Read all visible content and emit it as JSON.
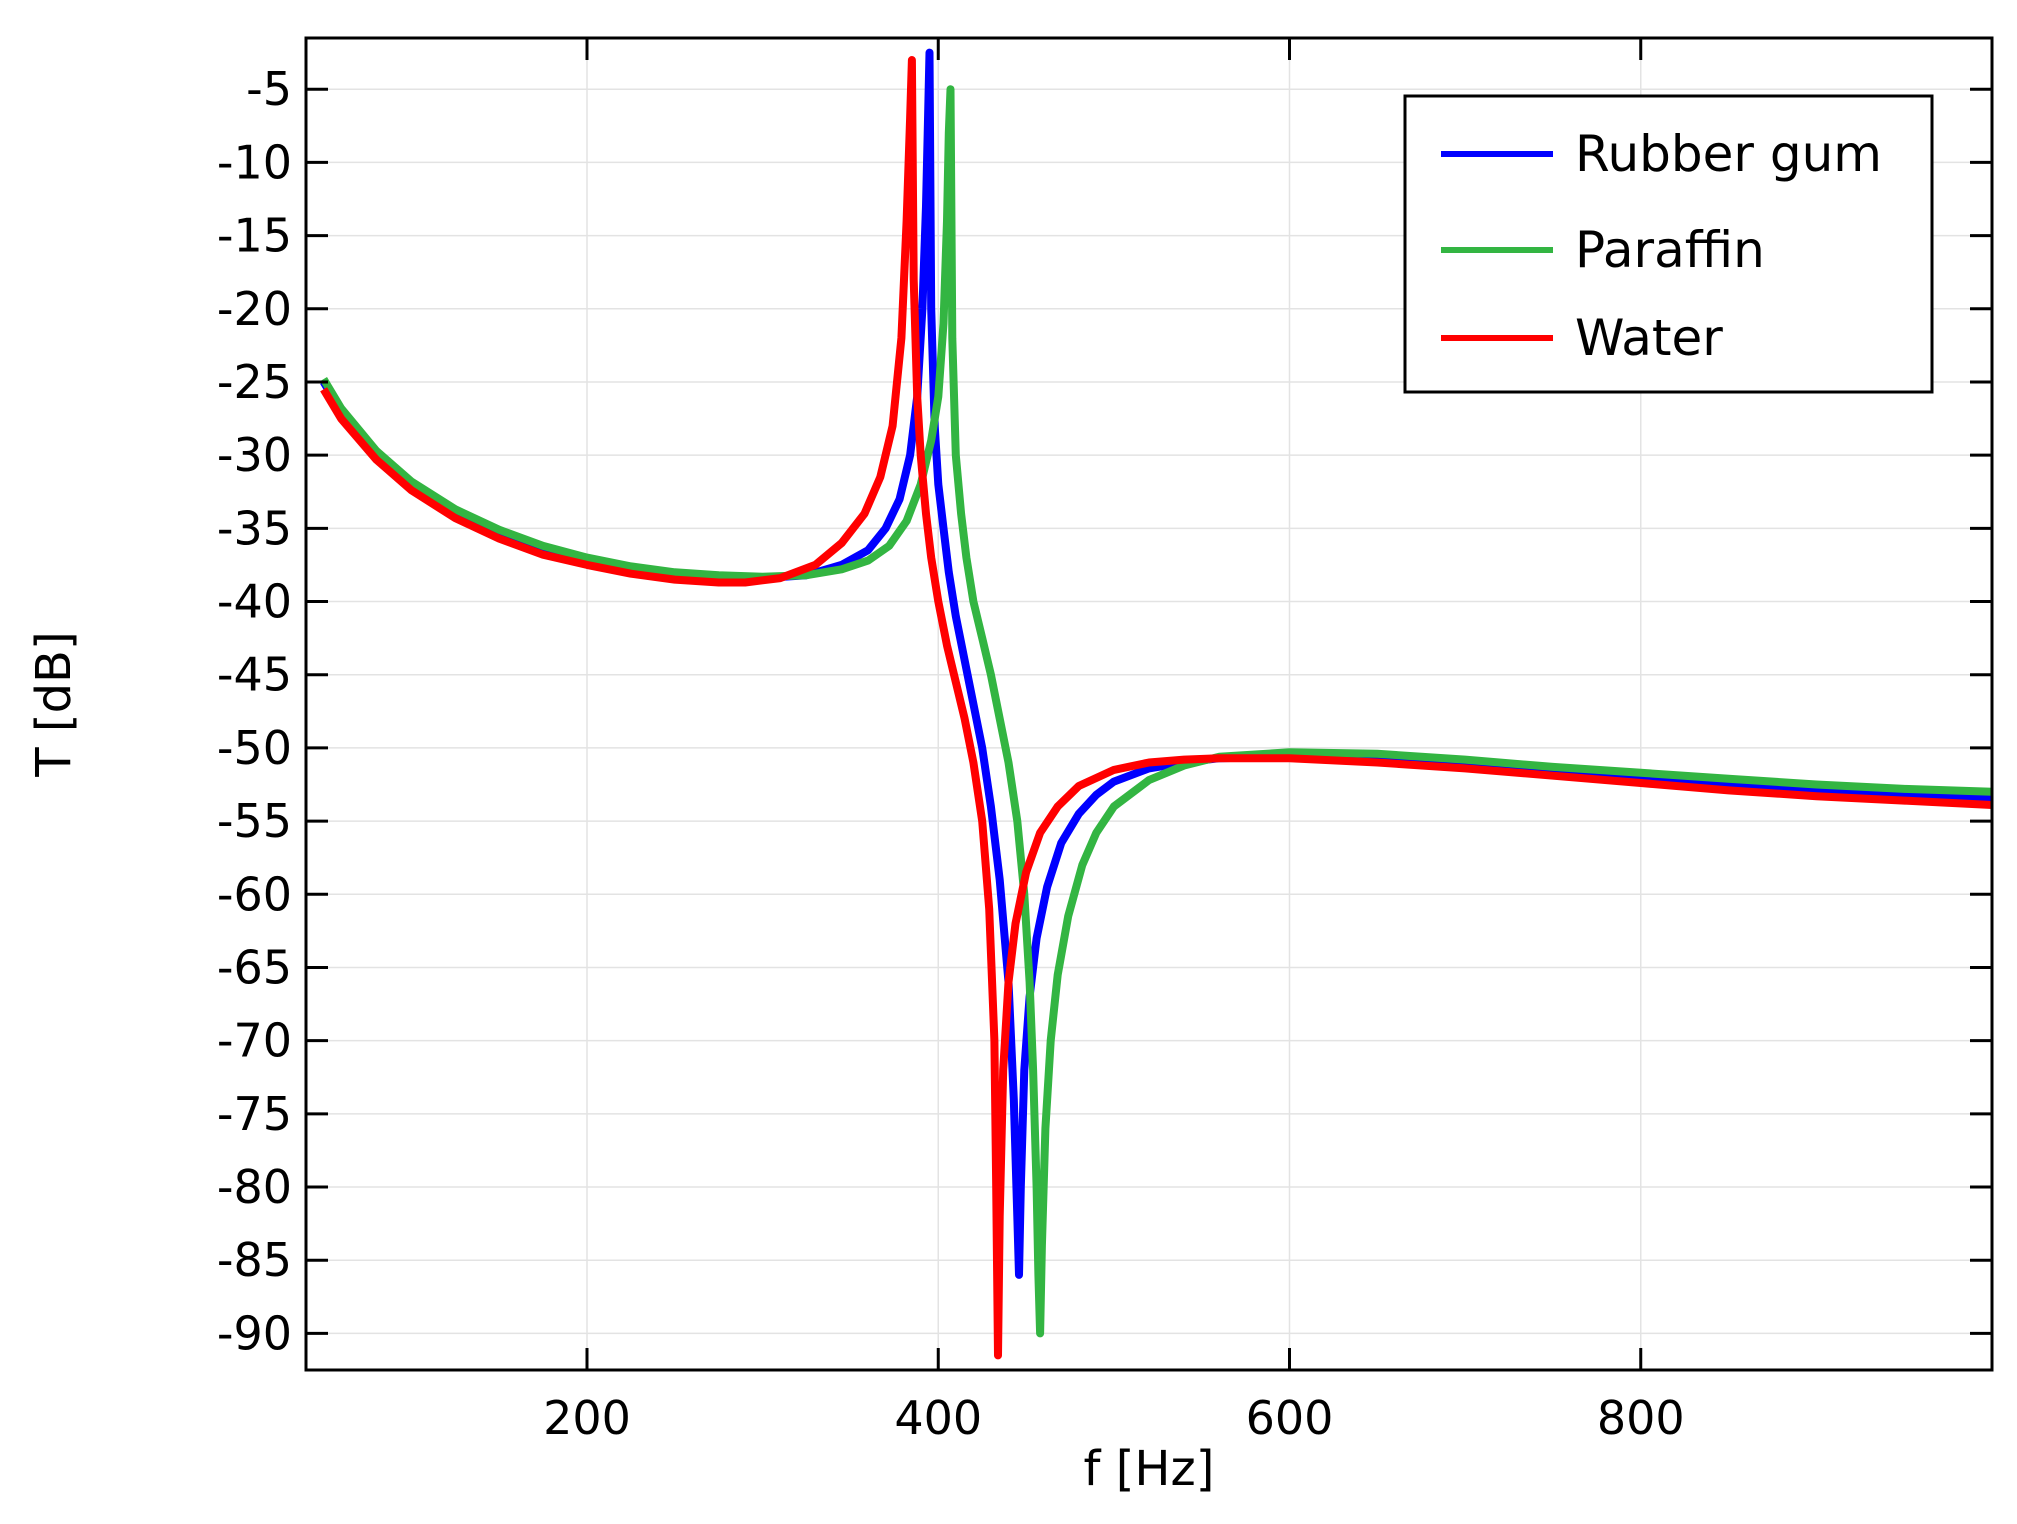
{
  "chart_data": {
    "type": "line",
    "title": "",
    "xlabel": "f [Hz]",
    "ylabel": "T [dB]",
    "xlim": [
      40,
      1000
    ],
    "ylim": [
      -92.5,
      -1.5
    ],
    "xticks": [
      200,
      400,
      600,
      800
    ],
    "xtick_labels": [
      "200",
      "400",
      "600",
      "800"
    ],
    "yticks": [
      -5,
      -10,
      -15,
      -20,
      -25,
      -30,
      -35,
      -40,
      -45,
      -50,
      -55,
      -60,
      -65,
      -70,
      -75,
      -80,
      -85,
      -90
    ],
    "ytick_labels": [
      "-5",
      "-10",
      "-15",
      "-20",
      "-25",
      "-30",
      "-35",
      "-40",
      "-45",
      "-50",
      "-55",
      "-60",
      "-65",
      "-70",
      "-75",
      "-80",
      "-85",
      "-90"
    ],
    "grid": true,
    "legend_position": "top-right",
    "series": [
      {
        "name": "Rubber gum",
        "color": "#0000ff",
        "points": [
          [
            50,
            -25.0
          ],
          [
            60,
            -27.0
          ],
          [
            80,
            -29.9
          ],
          [
            100,
            -32.0
          ],
          [
            125,
            -33.9
          ],
          [
            150,
            -35.3
          ],
          [
            175,
            -36.4
          ],
          [
            200,
            -37.2
          ],
          [
            225,
            -37.8
          ],
          [
            250,
            -38.2
          ],
          [
            275,
            -38.4
          ],
          [
            300,
            -38.4
          ],
          [
            325,
            -38.2
          ],
          [
            345,
            -37.5
          ],
          [
            360,
            -36.5
          ],
          [
            370,
            -35.0
          ],
          [
            378,
            -33.0
          ],
          [
            384,
            -30.0
          ],
          [
            388,
            -26.0
          ],
          [
            391,
            -20.0
          ],
          [
            393,
            -13.0
          ],
          [
            394,
            -8.0
          ],
          [
            395,
            -2.5
          ],
          [
            396,
            -20.0
          ],
          [
            398,
            -28.0
          ],
          [
            400,
            -32.0
          ],
          [
            403,
            -35.0
          ],
          [
            406,
            -38.0
          ],
          [
            410,
            -41.0
          ],
          [
            415,
            -44.0
          ],
          [
            420,
            -47.0
          ],
          [
            425,
            -50.0
          ],
          [
            430,
            -54.0
          ],
          [
            435,
            -59.0
          ],
          [
            440,
            -66.0
          ],
          [
            443,
            -74.0
          ],
          [
            445,
            -82.0
          ],
          [
            446,
            -86.0
          ],
          [
            447,
            -80.0
          ],
          [
            449,
            -72.0
          ],
          [
            452,
            -67.0
          ],
          [
            456,
            -63.0
          ],
          [
            462,
            -59.5
          ],
          [
            470,
            -56.5
          ],
          [
            480,
            -54.5
          ],
          [
            490,
            -53.2
          ],
          [
            500,
            -52.3
          ],
          [
            520,
            -51.4
          ],
          [
            540,
            -51.0
          ],
          [
            560,
            -50.7
          ],
          [
            600,
            -50.6
          ],
          [
            650,
            -50.7
          ],
          [
            700,
            -51.1
          ],
          [
            750,
            -51.6
          ],
          [
            800,
            -52.0
          ],
          [
            850,
            -52.4
          ],
          [
            900,
            -52.8
          ],
          [
            950,
            -53.2
          ],
          [
            1000,
            -53.5
          ]
        ]
      },
      {
        "name": "Paraffin",
        "color": "#33b542",
        "points": [
          [
            50,
            -24.8
          ],
          [
            60,
            -26.8
          ],
          [
            80,
            -29.7
          ],
          [
            100,
            -31.8
          ],
          [
            125,
            -33.7
          ],
          [
            150,
            -35.1
          ],
          [
            175,
            -36.2
          ],
          [
            200,
            -37.0
          ],
          [
            225,
            -37.6
          ],
          [
            250,
            -38.0
          ],
          [
            275,
            -38.2
          ],
          [
            300,
            -38.3
          ],
          [
            325,
            -38.2
          ],
          [
            345,
            -37.8
          ],
          [
            360,
            -37.2
          ],
          [
            372,
            -36.2
          ],
          [
            382,
            -34.5
          ],
          [
            390,
            -32.0
          ],
          [
            396,
            -29.0
          ],
          [
            400,
            -26.0
          ],
          [
            403,
            -21.0
          ],
          [
            405,
            -14.0
          ],
          [
            406,
            -8.0
          ],
          [
            407,
            -5.0
          ],
          [
            408,
            -22.0
          ],
          [
            410,
            -30.0
          ],
          [
            413,
            -34.0
          ],
          [
            416,
            -37.0
          ],
          [
            420,
            -40.0
          ],
          [
            425,
            -42.5
          ],
          [
            430,
            -45.0
          ],
          [
            435,
            -48.0
          ],
          [
            440,
            -51.0
          ],
          [
            445,
            -55.0
          ],
          [
            449,
            -60.0
          ],
          [
            452,
            -66.0
          ],
          [
            454,
            -72.0
          ],
          [
            456,
            -80.0
          ],
          [
            457,
            -86.0
          ],
          [
            458,
            -90.0
          ],
          [
            459,
            -84.0
          ],
          [
            461,
            -76.0
          ],
          [
            464,
            -70.0
          ],
          [
            468,
            -65.5
          ],
          [
            474,
            -61.5
          ],
          [
            482,
            -58.0
          ],
          [
            490,
            -55.8
          ],
          [
            500,
            -54.0
          ],
          [
            520,
            -52.2
          ],
          [
            540,
            -51.2
          ],
          [
            560,
            -50.6
          ],
          [
            600,
            -50.3
          ],
          [
            650,
            -50.4
          ],
          [
            700,
            -50.8
          ],
          [
            750,
            -51.3
          ],
          [
            800,
            -51.7
          ],
          [
            850,
            -52.1
          ],
          [
            900,
            -52.5
          ],
          [
            950,
            -52.8
          ],
          [
            1000,
            -53.0
          ]
        ]
      },
      {
        "name": "Water",
        "color": "#ff0000",
        "points": [
          [
            50,
            -25.5
          ],
          [
            60,
            -27.5
          ],
          [
            80,
            -30.3
          ],
          [
            100,
            -32.4
          ],
          [
            125,
            -34.3
          ],
          [
            150,
            -35.7
          ],
          [
            175,
            -36.8
          ],
          [
            200,
            -37.5
          ],
          [
            225,
            -38.1
          ],
          [
            250,
            -38.5
          ],
          [
            275,
            -38.7
          ],
          [
            290,
            -38.7
          ],
          [
            310,
            -38.4
          ],
          [
            330,
            -37.5
          ],
          [
            345,
            -36.0
          ],
          [
            358,
            -34.0
          ],
          [
            367,
            -31.5
          ],
          [
            374,
            -28.0
          ],
          [
            379,
            -22.0
          ],
          [
            382,
            -14.0
          ],
          [
            384,
            -7.0
          ],
          [
            385,
            -3.0
          ],
          [
            386,
            -18.0
          ],
          [
            388,
            -26.0
          ],
          [
            390,
            -30.0
          ],
          [
            393,
            -34.0
          ],
          [
            396,
            -37.0
          ],
          [
            400,
            -40.0
          ],
          [
            405,
            -43.0
          ],
          [
            410,
            -45.5
          ],
          [
            415,
            -48.0
          ],
          [
            420,
            -51.0
          ],
          [
            425,
            -55.0
          ],
          [
            429,
            -61.0
          ],
          [
            432,
            -70.0
          ],
          [
            433,
            -80.0
          ],
          [
            434,
            -91.5
          ],
          [
            435,
            -82.0
          ],
          [
            437,
            -72.0
          ],
          [
            440,
            -66.0
          ],
          [
            444,
            -62.0
          ],
          [
            450,
            -58.5
          ],
          [
            458,
            -55.8
          ],
          [
            468,
            -54.0
          ],
          [
            480,
            -52.6
          ],
          [
            500,
            -51.5
          ],
          [
            520,
            -51.0
          ],
          [
            540,
            -50.8
          ],
          [
            560,
            -50.7
          ],
          [
            600,
            -50.7
          ],
          [
            650,
            -51.0
          ],
          [
            700,
            -51.4
          ],
          [
            750,
            -51.9
          ],
          [
            800,
            -52.4
          ],
          [
            850,
            -52.9
          ],
          [
            900,
            -53.3
          ],
          [
            950,
            -53.6
          ],
          [
            1000,
            -53.9
          ]
        ]
      }
    ]
  }
}
